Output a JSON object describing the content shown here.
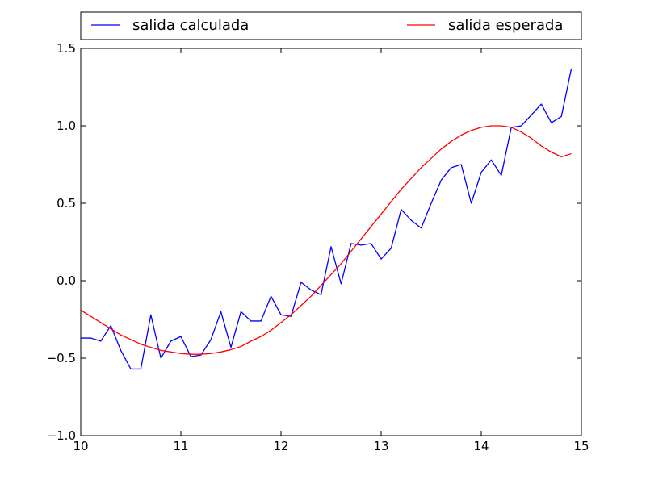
{
  "chart_data": {
    "type": "line",
    "title": "",
    "xlabel": "",
    "ylabel": "",
    "xlim": [
      10,
      15
    ],
    "ylim": [
      -1.0,
      1.5
    ],
    "xticks": [
      10,
      11,
      12,
      13,
      14,
      15
    ],
    "xtick_labels": [
      "10",
      "11",
      "12",
      "13",
      "14",
      "15"
    ],
    "yticks": [
      -1.0,
      -0.5,
      0.0,
      0.5,
      1.0,
      1.5
    ],
    "ytick_labels": [
      "−1.0",
      "−0.5",
      "0.0",
      "0.5",
      "1.0",
      "1.5"
    ],
    "grid": false,
    "legend_position": "top, above plot",
    "series": [
      {
        "name": "salida calculada",
        "color": "#0000ff",
        "x": [
          10.0,
          10.1,
          10.2,
          10.3,
          10.4,
          10.5,
          10.6,
          10.7,
          10.8,
          10.9,
          11.0,
          11.1,
          11.2,
          11.3,
          11.4,
          11.5,
          11.6,
          11.7,
          11.8,
          11.9,
          12.0,
          12.1,
          12.2,
          12.3,
          12.4,
          12.5,
          12.6,
          12.7,
          12.8,
          12.9,
          13.0,
          13.1,
          13.2,
          13.3,
          13.4,
          13.5,
          13.6,
          13.7,
          13.8,
          13.9,
          14.0,
          14.1,
          14.2,
          14.3,
          14.4,
          14.5,
          14.6,
          14.7,
          14.8,
          14.9
        ],
        "y": [
          -0.37,
          -0.37,
          -0.39,
          -0.29,
          -0.45,
          -0.57,
          -0.57,
          -0.22,
          -0.5,
          -0.39,
          -0.36,
          -0.49,
          -0.48,
          -0.38,
          -0.2,
          -0.43,
          -0.2,
          -0.26,
          -0.26,
          -0.1,
          -0.22,
          -0.23,
          -0.01,
          -0.06,
          -0.09,
          0.22,
          -0.02,
          0.24,
          0.23,
          0.24,
          0.14,
          0.21,
          0.46,
          0.39,
          0.34,
          0.5,
          0.65,
          0.73,
          0.75,
          0.5,
          0.7,
          0.78,
          0.68,
          0.99,
          1.0,
          1.07,
          1.14,
          1.02,
          1.06,
          1.37
        ]
      },
      {
        "name": "salida esperada",
        "color": "#ff0000",
        "x": [
          10.0,
          10.1,
          10.2,
          10.3,
          10.4,
          10.5,
          10.6,
          10.7,
          10.8,
          10.9,
          11.0,
          11.1,
          11.2,
          11.3,
          11.4,
          11.5,
          11.6,
          11.7,
          11.8,
          11.9,
          12.0,
          12.1,
          12.2,
          12.3,
          12.4,
          12.5,
          12.6,
          12.7,
          12.8,
          12.9,
          13.0,
          13.1,
          13.2,
          13.3,
          13.4,
          13.5,
          13.6,
          13.7,
          13.8,
          13.9,
          14.0,
          14.1,
          14.2,
          14.3,
          14.4,
          14.5,
          14.6,
          14.7,
          14.8,
          14.9
        ],
        "y": [
          -0.19,
          -0.23,
          -0.27,
          -0.31,
          -0.35,
          -0.38,
          -0.41,
          -0.43,
          -0.45,
          -0.46,
          -0.47,
          -0.475,
          -0.475,
          -0.47,
          -0.46,
          -0.445,
          -0.425,
          -0.39,
          -0.36,
          -0.32,
          -0.27,
          -0.22,
          -0.16,
          -0.1,
          -0.03,
          0.04,
          0.11,
          0.19,
          0.27,
          0.35,
          0.43,
          0.51,
          0.59,
          0.66,
          0.73,
          0.79,
          0.85,
          0.9,
          0.94,
          0.97,
          0.99,
          1.0,
          1.0,
          0.99,
          0.96,
          0.92,
          0.87,
          0.83,
          0.8,
          0.82
        ]
      }
    ]
  }
}
